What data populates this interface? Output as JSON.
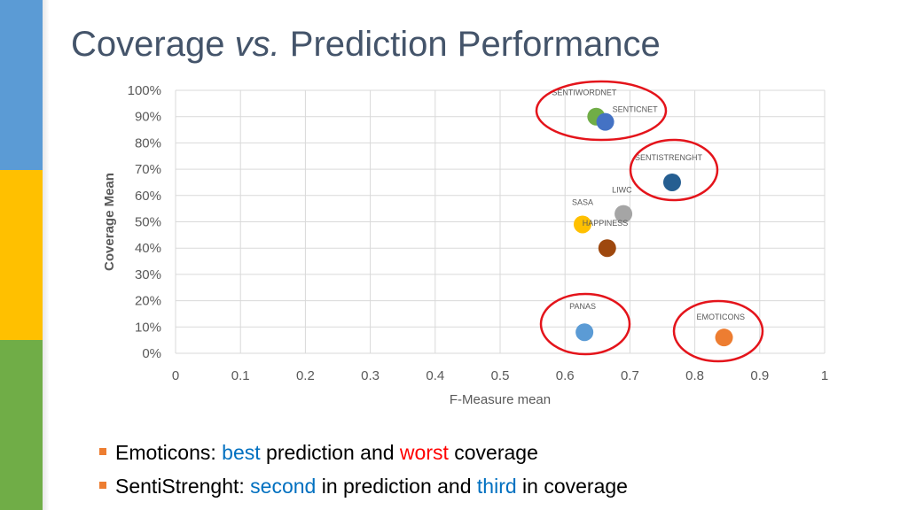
{
  "slide": {
    "title_part1": "Coverage ",
    "title_italic": "vs.",
    "title_part2": " Prediction Performance",
    "accent_colors": {
      "stripe_top": "#5b9bd5",
      "stripe_middle": "#ffc000",
      "stripe_bottom": "#70ad47",
      "title": "#44546a",
      "bullet": "#ed7d31",
      "highlight_blue": "#0070c0",
      "highlight_red": "#ff0000"
    }
  },
  "bullets": [
    {
      "segments": [
        {
          "text": "Emoticons: ",
          "style": "normal"
        },
        {
          "text": "best",
          "style": "blue"
        },
        {
          "text": " prediction and ",
          "style": "normal"
        },
        {
          "text": "worst",
          "style": "red"
        },
        {
          "text": " coverage",
          "style": "normal"
        }
      ]
    },
    {
      "segments": [
        {
          "text": "SentiStrenght: ",
          "style": "normal"
        },
        {
          "text": "second",
          "style": "blue"
        },
        {
          "text": " in prediction and ",
          "style": "normal"
        },
        {
          "text": "third",
          "style": "blue"
        },
        {
          "text": " in coverage",
          "style": "normal"
        }
      ]
    }
  ],
  "chart_data": {
    "type": "scatter",
    "xlabel": "F-Measure mean",
    "ylabel": "Coverage Mean",
    "xlim": [
      0,
      1
    ],
    "ylim": [
      0,
      1
    ],
    "x_ticks": [
      "0",
      "0.1",
      "0.2",
      "0.3",
      "0.4",
      "0.5",
      "0.6",
      "0.7",
      "0.8",
      "0.9",
      "1"
    ],
    "y_ticks": [
      "0%",
      "10%",
      "20%",
      "30%",
      "40%",
      "50%",
      "60%",
      "70%",
      "80%",
      "90%",
      "100%"
    ],
    "grid": true,
    "points": [
      {
        "label": "SENTIWORDNET",
        "x": 0.648,
        "y": 0.9,
        "color": "#70ad47",
        "circled": true
      },
      {
        "label": "SENTICNET",
        "x": 0.662,
        "y": 0.88,
        "color": "#4472c4",
        "circled": true
      },
      {
        "label": "SENTISTRENGHT",
        "x": 0.765,
        "y": 0.65,
        "color": "#255e91",
        "circled": true
      },
      {
        "label": "LIWC",
        "x": 0.69,
        "y": 0.53,
        "color": "#a5a5a5",
        "circled": false
      },
      {
        "label": "SASA",
        "x": 0.627,
        "y": 0.49,
        "color": "#ffc000",
        "circled": false
      },
      {
        "label": "HAPPINESS",
        "x": 0.665,
        "y": 0.4,
        "color": "#9e480e",
        "circled": false
      },
      {
        "label": "PANAS",
        "x": 0.63,
        "y": 0.08,
        "color": "#5b9bd5",
        "circled": true
      },
      {
        "label": "EMOTICONS",
        "x": 0.845,
        "y": 0.06,
        "color": "#ed7d31",
        "circled": true
      }
    ]
  }
}
